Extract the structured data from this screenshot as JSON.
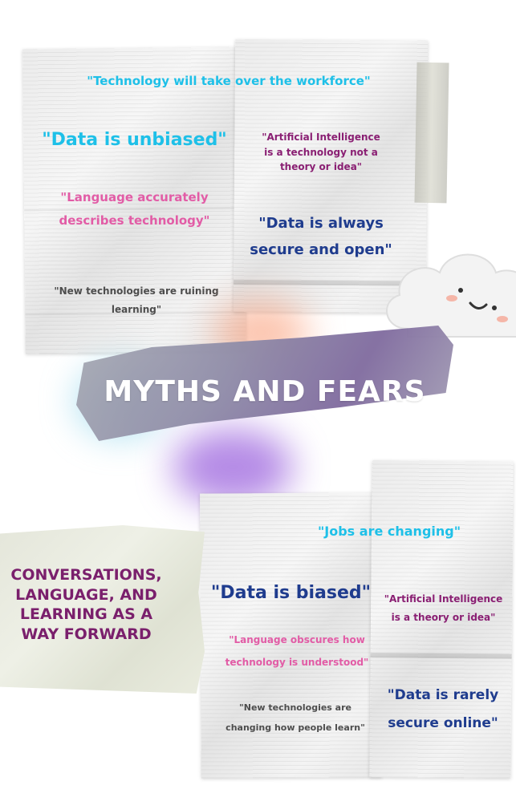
{
  "top_block": {
    "headline": "\"Technology will take over the workforce\"",
    "myth_data_unbiased": "\"Data is unbiased\"",
    "myth_ai_line1": "\"Artificial Intelligence",
    "myth_ai_line2": "is a technology not a",
    "myth_ai_line3": "theory or idea\"",
    "myth_language_line1": "\"Language accurately",
    "myth_language_line2": "describes technology\"",
    "myth_secure_line1": "\"Data is always",
    "myth_secure_line2": "secure and open\"",
    "myth_learning_line1": "\"New technologies are ruining",
    "myth_learning_line2": "learning\""
  },
  "banner": {
    "title": "MYTHS AND FEARS"
  },
  "bottom_block": {
    "headline": "\"Jobs are changing\"",
    "fact_data_biased": "\"Data is biased\"",
    "fact_ai_line1": "\"Artificial Intelligence",
    "fact_ai_line2": "is a theory or idea\"",
    "fact_language_line1": "\"Language obscures how",
    "fact_language_line2": "technology is understood\"",
    "fact_secure_line1": "\"Data is rarely",
    "fact_secure_line2": "secure online\"",
    "fact_learning_line1": "\"New technologies are",
    "fact_learning_line2": "changing how people learn\""
  },
  "side_note": {
    "line1": "CONVERSATIONS,",
    "line2": "LANGUAGE, AND",
    "line3": "LEARNING AS A",
    "line4": "WAY FORWARD"
  },
  "colors": {
    "cyan": "#1ec0e8",
    "navy": "#1f3c8e",
    "pink": "#e25ca6",
    "purple": "#8a1f73",
    "gray": "#4d4d4d"
  },
  "icons": {
    "cloud": "smiling-cloud-icon"
  }
}
